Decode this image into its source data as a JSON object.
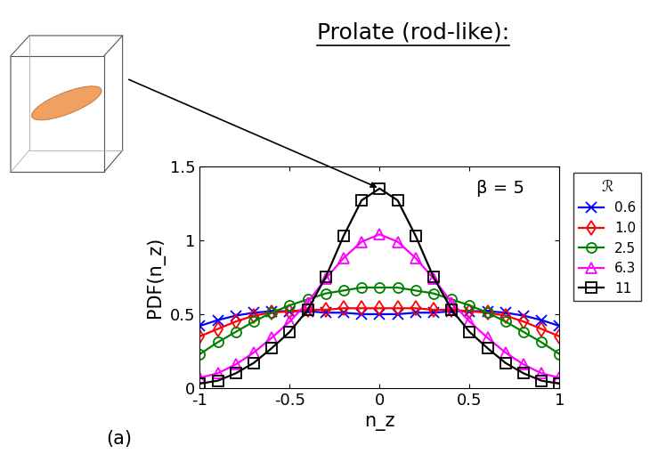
{
  "chart_data": {
    "type": "line",
    "title": "Prolate (rod-like):",
    "x_label": "n_z",
    "y_label": "PDF(n_z)",
    "annotations": [
      "β = 5",
      "(a)"
    ],
    "legend_title": "ℛ",
    "legend": "right",
    "x": [
      -1.0,
      -0.9,
      -0.8,
      -0.7,
      -0.6,
      -0.5,
      -0.4,
      -0.3,
      -0.2,
      -0.1,
      0.0,
      0.1,
      0.2,
      0.3,
      0.4,
      0.5,
      0.6,
      0.7,
      0.8,
      0.9,
      1.0
    ],
    "series": [
      {
        "name": "0.6",
        "color": "#0000ff",
        "marker": "x",
        "values": [
          0.42,
          0.46,
          0.49,
          0.51,
          0.52,
          0.52,
          0.52,
          0.51,
          0.51,
          0.5,
          0.5,
          0.5,
          0.51,
          0.51,
          0.52,
          0.52,
          0.52,
          0.51,
          0.49,
          0.46,
          0.42
        ]
      },
      {
        "name": "1.0",
        "color": "#ff0000",
        "marker": "diamond",
        "values": [
          0.35,
          0.4,
          0.45,
          0.49,
          0.51,
          0.52,
          0.53,
          0.53,
          0.54,
          0.54,
          0.54,
          0.54,
          0.54,
          0.53,
          0.53,
          0.52,
          0.51,
          0.49,
          0.45,
          0.4,
          0.35
        ]
      },
      {
        "name": "2.5",
        "color": "#008000",
        "marker": "circle",
        "values": [
          0.23,
          0.31,
          0.38,
          0.45,
          0.51,
          0.56,
          0.6,
          0.64,
          0.66,
          0.68,
          0.68,
          0.68,
          0.66,
          0.64,
          0.6,
          0.56,
          0.51,
          0.45,
          0.38,
          0.31,
          0.23
        ]
      },
      {
        "name": "6.3",
        "color": "#ff00ff",
        "marker": "triangle",
        "values": [
          0.07,
          0.1,
          0.16,
          0.24,
          0.34,
          0.45,
          0.58,
          0.74,
          0.88,
          0.99,
          1.04,
          0.99,
          0.88,
          0.74,
          0.58,
          0.45,
          0.34,
          0.24,
          0.16,
          0.1,
          0.07
        ]
      },
      {
        "name": "11",
        "color": "#000000",
        "marker": "square",
        "values": [
          0.03,
          0.05,
          0.1,
          0.17,
          0.27,
          0.38,
          0.53,
          0.75,
          1.03,
          1.27,
          1.35,
          1.27,
          1.03,
          0.75,
          0.53,
          0.38,
          0.27,
          0.17,
          0.1,
          0.05,
          0.03
        ]
      }
    ],
    "xlim": [
      -1,
      1
    ],
    "xticks": [
      -1,
      -0.5,
      0,
      0.5,
      1
    ],
    "ylim": [
      0,
      1.5
    ],
    "yticks": [
      0,
      0.5,
      1,
      1.5
    ],
    "grid": false
  }
}
